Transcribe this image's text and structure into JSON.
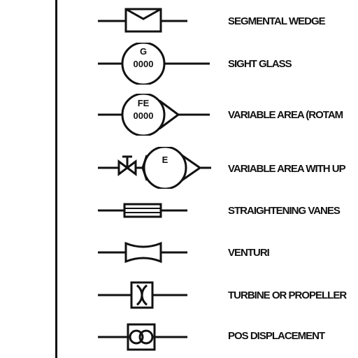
{
  "legend": {
    "items": [
      {
        "label": "SEGMENTAL WEDGE"
      },
      {
        "label": "SIGHT GLASS",
        "bubble_tag": "G",
        "bubble_number": "0000"
      },
      {
        "label": "VARIABLE AREA (ROTAM",
        "bubble_tag": "FE",
        "bubble_number": "0000"
      },
      {
        "label": "VARIABLE AREA WITH UP",
        "bubble_tag": "E"
      },
      {
        "label": "STRAIGHTENING VANES"
      },
      {
        "label": "VENTURI"
      },
      {
        "label": "TURBINE OR PROPELLER"
      },
      {
        "label": "POS DISPLACEMENT"
      }
    ]
  },
  "colors": {
    "ink": "#111111",
    "background": "#ffffff"
  }
}
